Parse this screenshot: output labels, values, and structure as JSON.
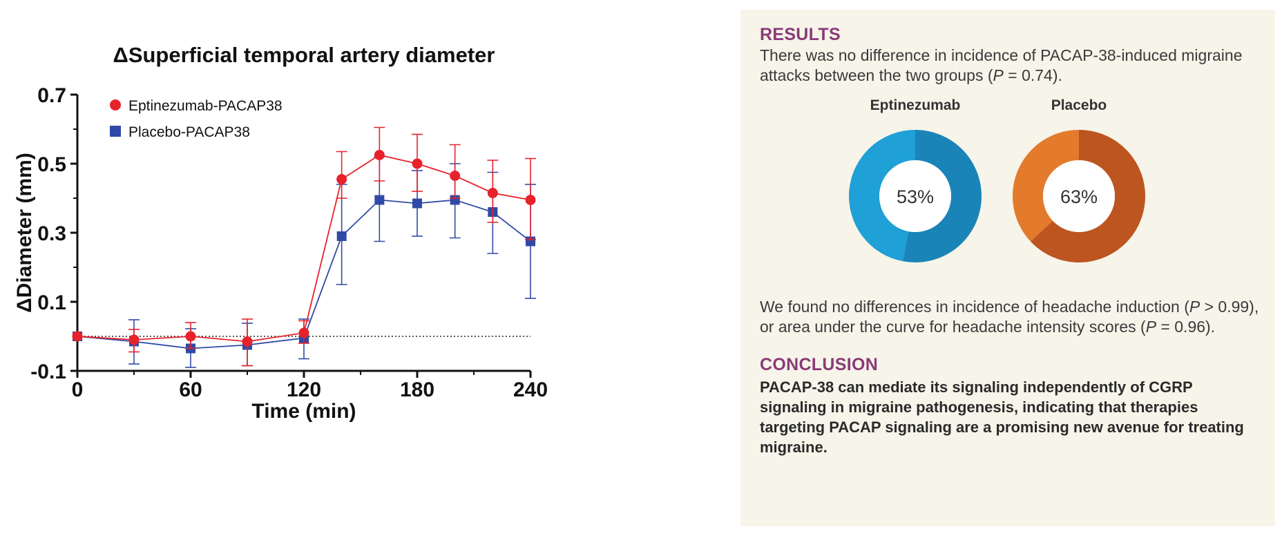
{
  "chart_data": {
    "type": "line",
    "title": "ΔSuperficial temporal artery diameter",
    "xlabel": "Time (min)",
    "ylabel": "ΔDiameter (mm)",
    "xlim": [
      0,
      240
    ],
    "ylim": [
      -0.1,
      0.7
    ],
    "xticks": [
      0,
      60,
      120,
      180,
      240
    ],
    "yticks": [
      -0.1,
      0.1,
      0.3,
      0.5,
      0.7
    ],
    "ytick_labels": [
      "-0.1",
      "0.1",
      "0.3",
      "0.5",
      "0.7"
    ],
    "reference_line_y": 0,
    "legend_position": "top-left",
    "grid": false,
    "x": [
      0,
      30,
      60,
      90,
      120,
      140,
      160,
      180,
      200,
      220,
      240
    ],
    "series": [
      {
        "name": "Eptinezumab-PACAP38",
        "color": "#e8222b",
        "marker": "circle",
        "values": [
          0.0,
          -0.01,
          0.0,
          -0.015,
          0.01,
          0.455,
          0.525,
          0.5,
          0.465,
          0.415,
          0.395
        ],
        "err_low": [
          0.0,
          -0.045,
          -0.035,
          -0.085,
          -0.02,
          0.4,
          0.45,
          0.42,
          0.4,
          0.33,
          0.28
        ],
        "err_high": [
          0.0,
          0.02,
          0.04,
          0.05,
          0.045,
          0.535,
          0.605,
          0.585,
          0.555,
          0.51,
          0.515
        ]
      },
      {
        "name": "Placebo-PACAP38",
        "color": "#2f4aa6",
        "marker": "square",
        "values": [
          0.0,
          -0.015,
          -0.035,
          -0.025,
          -0.005,
          0.29,
          0.395,
          0.385,
          0.395,
          0.36,
          0.275
        ],
        "err_low": [
          0.0,
          -0.08,
          -0.09,
          -0.085,
          -0.065,
          0.15,
          0.275,
          0.29,
          0.285,
          0.24,
          0.11
        ],
        "err_high": [
          0.0,
          0.048,
          0.022,
          0.038,
          0.05,
          0.44,
          0.52,
          0.48,
          0.5,
          0.475,
          0.44
        ]
      }
    ]
  },
  "summary": {
    "results_heading": "RESULTS",
    "results_text_before_p": "There was no difference in incidence of PACAP-38-induced migraine attacks between the two groups (",
    "p_symbol": "P",
    "results_p_value": " = 0.74).",
    "donuts": [
      {
        "label": "Eptinezumab",
        "percent_text": "53%",
        "value": 53,
        "color_main": "#1a84b8",
        "color_rest": "#1fa0d6"
      },
      {
        "label": "Placebo",
        "percent_text": "63%",
        "value": 63,
        "color_main": "#bd5520",
        "color_rest": "#e37a2c"
      }
    ],
    "finding_part1": "We found no differences in incidence of headache induction (",
    "finding_p1": " > 0.99), or area under the curve for headache intensity scores (",
    "finding_p2": " = 0.96).",
    "conclusion_heading": "CONCLUSION",
    "conclusion_text": "PACAP-38 can mediate its signaling independently of CGRP signaling in migraine pathogenesis, indicating that therapies targeting PACAP signaling are a promising new avenue for treating migraine."
  }
}
